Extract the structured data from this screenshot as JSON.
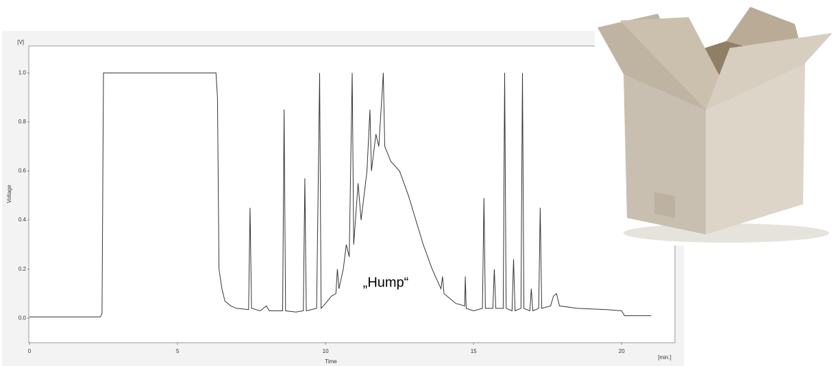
{
  "chart_data": {
    "type": "line",
    "y_unit": "[V]",
    "x_unit": "[min.]",
    "xlabel": "Time",
    "ylabel": "Voltage",
    "annotation": "„Hump“",
    "xlim": [
      0,
      21.8
    ],
    "ylim": [
      -0.1,
      1.11
    ],
    "xticks": [
      0,
      5,
      10,
      15,
      20
    ],
    "yticks": [
      {
        "value": 0,
        "label": "0.0"
      },
      0.2,
      0.4,
      0.6,
      0.8,
      {
        "value": 1,
        "label": "1.0"
      }
    ],
    "x": [
      0,
      2.4,
      2.45,
      2.5,
      6.3,
      6.35,
      6.4,
      6.5,
      6.6,
      6.8,
      7.0,
      7.4,
      7.45,
      7.5,
      7.8,
      8.0,
      8.1,
      8.55,
      8.6,
      8.65,
      9.0,
      9.25,
      9.3,
      9.35,
      9.7,
      9.8,
      9.85,
      10.0,
      10.2,
      10.35,
      10.4,
      10.45,
      10.6,
      10.7,
      10.8,
      10.9,
      10.95,
      11.1,
      11.2,
      11.4,
      11.5,
      11.55,
      11.7,
      11.8,
      11.95,
      12.0,
      12.2,
      12.5,
      12.8,
      13.0,
      13.3,
      13.6,
      13.9,
      13.95,
      14.0,
      14.4,
      14.7,
      14.72,
      14.75,
      15.0,
      15.3,
      15.35,
      15.4,
      15.65,
      15.7,
      15.75,
      16.0,
      16.05,
      16.1,
      16.3,
      16.35,
      16.4,
      16.6,
      16.65,
      16.7,
      16.9,
      16.95,
      17.0,
      17.2,
      17.25,
      17.3,
      17.6,
      17.7,
      17.8,
      17.9,
      18.5,
      19.5,
      20.0,
      20.1,
      21.0
    ],
    "series": [
      {
        "color": "#333333",
        "values": [
          0.005,
          0.005,
          0.02,
          1.0,
          1.0,
          0.9,
          0.2,
          0.12,
          0.07,
          0.05,
          0.04,
          0.035,
          0.45,
          0.04,
          0.03,
          0.05,
          0.03,
          0.03,
          0.85,
          0.03,
          0.025,
          0.03,
          0.57,
          0.03,
          0.04,
          1.0,
          0.04,
          0.06,
          0.09,
          0.1,
          0.2,
          0.12,
          0.2,
          0.3,
          0.25,
          1.0,
          0.3,
          0.55,
          0.4,
          0.6,
          0.85,
          0.6,
          0.75,
          0.7,
          1.0,
          0.7,
          0.64,
          0.6,
          0.5,
          0.42,
          0.3,
          0.2,
          0.12,
          0.17,
          0.1,
          0.06,
          0.05,
          0.17,
          0.04,
          0.03,
          0.04,
          0.49,
          0.04,
          0.04,
          0.2,
          0.04,
          0.04,
          1.0,
          0.04,
          0.03,
          0.24,
          0.03,
          0.04,
          1.0,
          0.04,
          0.03,
          0.12,
          0.03,
          0.04,
          0.45,
          0.04,
          0.05,
          0.09,
          0.1,
          0.05,
          0.04,
          0.035,
          0.03,
          0.01,
          0.01
        ]
      }
    ]
  }
}
